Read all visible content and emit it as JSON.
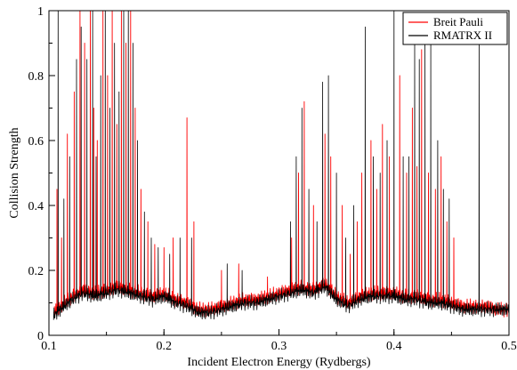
{
  "chart_data": {
    "type": "line",
    "title": "",
    "xlabel": "Incident Electron Energy (Rydbergs)",
    "ylabel": "Collision Strength",
    "xlim": [
      0.1,
      0.5
    ],
    "ylim": [
      0,
      1
    ],
    "xticks": [
      0.1,
      0.2,
      0.3,
      0.4,
      0.5
    ],
    "xtick_labels": [
      "0.1",
      "0.2",
      "0.3",
      "0.4",
      "0.5"
    ],
    "yticks": [
      0,
      0.2,
      0.4,
      0.6,
      0.8,
      1
    ],
    "ytick_labels": [
      "0",
      "0.2",
      "0.4",
      "0.6",
      "0.8",
      "1"
    ],
    "grid": false,
    "legend_position": "top-right",
    "series": [
      {
        "name": "Breit Pauli",
        "color": "#ff0000",
        "background": [
          [
            0.104,
            0.07
          ],
          [
            0.11,
            0.09
          ],
          [
            0.12,
            0.12
          ],
          [
            0.13,
            0.14
          ],
          [
            0.14,
            0.13
          ],
          [
            0.15,
            0.14
          ],
          [
            0.16,
            0.15
          ],
          [
            0.17,
            0.14
          ],
          [
            0.18,
            0.13
          ],
          [
            0.19,
            0.12
          ],
          [
            0.2,
            0.13
          ],
          [
            0.21,
            0.11
          ],
          [
            0.22,
            0.1
          ],
          [
            0.23,
            0.08
          ],
          [
            0.24,
            0.08
          ],
          [
            0.25,
            0.09
          ],
          [
            0.26,
            0.1
          ],
          [
            0.27,
            0.11
          ],
          [
            0.28,
            0.11
          ],
          [
            0.29,
            0.12
          ],
          [
            0.3,
            0.13
          ],
          [
            0.31,
            0.14
          ],
          [
            0.32,
            0.15
          ],
          [
            0.33,
            0.14
          ],
          [
            0.34,
            0.16
          ],
          [
            0.35,
            0.12
          ],
          [
            0.36,
            0.1
          ],
          [
            0.37,
            0.12
          ],
          [
            0.38,
            0.13
          ],
          [
            0.39,
            0.13
          ],
          [
            0.4,
            0.13
          ],
          [
            0.41,
            0.12
          ],
          [
            0.42,
            0.12
          ],
          [
            0.43,
            0.11
          ],
          [
            0.44,
            0.11
          ],
          [
            0.45,
            0.1
          ],
          [
            0.46,
            0.09
          ],
          [
            0.47,
            0.09
          ],
          [
            0.48,
            0.09
          ],
          [
            0.49,
            0.08
          ],
          [
            0.5,
            0.08
          ]
        ],
        "resonances": [
          [
            0.107,
            0.45
          ],
          [
            0.111,
            0.3
          ],
          [
            0.116,
            0.62
          ],
          [
            0.122,
            0.75
          ],
          [
            0.127,
            1
          ],
          [
            0.131,
            0.9
          ],
          [
            0.136,
            1
          ],
          [
            0.139,
            0.7
          ],
          [
            0.142,
            0.6
          ],
          [
            0.147,
            1
          ],
          [
            0.151,
            0.8
          ],
          [
            0.155,
            1
          ],
          [
            0.159,
            0.65
          ],
          [
            0.163,
            1
          ],
          [
            0.167,
            0.9
          ],
          [
            0.171,
            1
          ],
          [
            0.175,
            0.7
          ],
          [
            0.18,
            0.45
          ],
          [
            0.186,
            0.35
          ],
          [
            0.192,
            0.28
          ],
          [
            0.2,
            0.27
          ],
          [
            0.208,
            0.3
          ],
          [
            0.22,
            0.67
          ],
          [
            0.226,
            0.35
          ],
          [
            0.25,
            0.2
          ],
          [
            0.265,
            0.22
          ],
          [
            0.29,
            0.18
          ],
          [
            0.311,
            0.3
          ],
          [
            0.317,
            0.5
          ],
          [
            0.322,
            0.72
          ],
          [
            0.33,
            0.4
          ],
          [
            0.34,
            0.62
          ],
          [
            0.345,
            0.55
          ],
          [
            0.355,
            0.4
          ],
          [
            0.362,
            0.25
          ],
          [
            0.368,
            0.35
          ],
          [
            0.372,
            0.5
          ],
          [
            0.38,
            0.6
          ],
          [
            0.385,
            0.45
          ],
          [
            0.39,
            0.65
          ],
          [
            0.396,
            0.55
          ],
          [
            0.405,
            0.8
          ],
          [
            0.411,
            0.5
          ],
          [
            0.416,
            0.7
          ],
          [
            0.42,
            0.52
          ],
          [
            0.424,
            0.88
          ],
          [
            0.43,
            0.5
          ],
          [
            0.436,
            0.45
          ],
          [
            0.441,
            0.55
          ],
          [
            0.446,
            0.35
          ],
          [
            0.452,
            0.3
          ],
          [
            0.5,
            0.8
          ]
        ]
      },
      {
        "name": "RMATRX II",
        "color": "#000000",
        "background": [
          [
            0.104,
            0.06
          ],
          [
            0.11,
            0.08
          ],
          [
            0.12,
            0.11
          ],
          [
            0.13,
            0.13
          ],
          [
            0.14,
            0.12
          ],
          [
            0.15,
            0.13
          ],
          [
            0.16,
            0.14
          ],
          [
            0.17,
            0.13
          ],
          [
            0.18,
            0.12
          ],
          [
            0.19,
            0.11
          ],
          [
            0.2,
            0.12
          ],
          [
            0.21,
            0.1
          ],
          [
            0.22,
            0.09
          ],
          [
            0.23,
            0.07
          ],
          [
            0.24,
            0.07
          ],
          [
            0.25,
            0.08
          ],
          [
            0.26,
            0.09
          ],
          [
            0.27,
            0.1
          ],
          [
            0.28,
            0.1
          ],
          [
            0.29,
            0.11
          ],
          [
            0.3,
            0.12
          ],
          [
            0.31,
            0.13
          ],
          [
            0.32,
            0.14
          ],
          [
            0.33,
            0.13
          ],
          [
            0.34,
            0.15
          ],
          [
            0.35,
            0.11
          ],
          [
            0.36,
            0.09
          ],
          [
            0.37,
            0.11
          ],
          [
            0.38,
            0.12
          ],
          [
            0.39,
            0.12
          ],
          [
            0.4,
            0.12
          ],
          [
            0.41,
            0.11
          ],
          [
            0.42,
            0.11
          ],
          [
            0.43,
            0.1
          ],
          [
            0.44,
            0.1
          ],
          [
            0.45,
            0.09
          ],
          [
            0.46,
            0.08
          ],
          [
            0.47,
            0.08
          ],
          [
            0.48,
            0.08
          ],
          [
            0.49,
            0.08
          ],
          [
            0.5,
            0.08
          ]
        ],
        "resonances": [
          [
            0.108,
            1
          ],
          [
            0.113,
            0.42
          ],
          [
            0.118,
            0.55
          ],
          [
            0.124,
            0.85
          ],
          [
            0.128,
            0.95
          ],
          [
            0.133,
            0.85
          ],
          [
            0.138,
            1
          ],
          [
            0.141,
            0.55
          ],
          [
            0.145,
            0.8
          ],
          [
            0.149,
            1
          ],
          [
            0.153,
            0.7
          ],
          [
            0.157,
            0.9
          ],
          [
            0.161,
            0.75
          ],
          [
            0.165,
            1
          ],
          [
            0.169,
            1
          ],
          [
            0.173,
            0.9
          ],
          [
            0.177,
            0.6
          ],
          [
            0.183,
            0.38
          ],
          [
            0.189,
            0.3
          ],
          [
            0.195,
            0.27
          ],
          [
            0.205,
            0.25
          ],
          [
            0.214,
            0.3
          ],
          [
            0.224,
            0.3
          ],
          [
            0.255,
            0.22
          ],
          [
            0.268,
            0.2
          ],
          [
            0.31,
            0.35
          ],
          [
            0.315,
            0.55
          ],
          [
            0.32,
            0.7
          ],
          [
            0.326,
            0.45
          ],
          [
            0.333,
            0.35
          ],
          [
            0.338,
            0.78
          ],
          [
            0.343,
            0.8
          ],
          [
            0.35,
            0.5
          ],
          [
            0.358,
            0.3
          ],
          [
            0.365,
            0.4
          ],
          [
            0.375,
            0.95
          ],
          [
            0.382,
            0.55
          ],
          [
            0.388,
            0.5
          ],
          [
            0.394,
            0.6
          ],
          [
            0.4,
            1
          ],
          [
            0.408,
            0.55
          ],
          [
            0.413,
            0.55
          ],
          [
            0.418,
            0.9
          ],
          [
            0.422,
            0.85
          ],
          [
            0.427,
            0.9
          ],
          [
            0.432,
            0.9
          ],
          [
            0.438,
            0.6
          ],
          [
            0.443,
            0.45
          ],
          [
            0.448,
            0.42
          ],
          [
            0.474,
            0.92
          ]
        ]
      }
    ]
  }
}
